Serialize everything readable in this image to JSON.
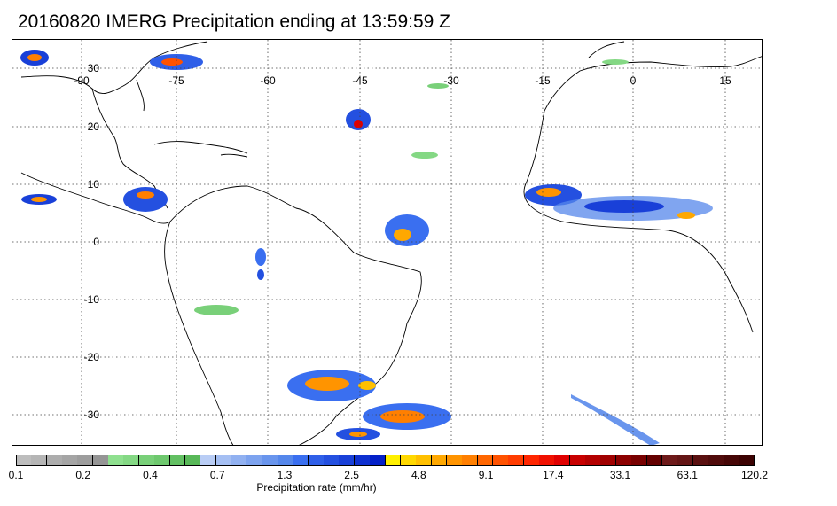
{
  "title": "20160820 IMERG Precipitation ending at 13:59:59 Z",
  "map": {
    "longitude_labels": [
      "-90",
      "-75",
      "-60",
      "-45",
      "-30",
      "-15",
      "0",
      "15"
    ],
    "latitude_labels": [
      "30",
      "20",
      "10",
      "0",
      "-10",
      "-20",
      "-30"
    ]
  },
  "colorbar": {
    "title": "Precipitation rate (mm/hr)",
    "tick_labels": [
      "0.1",
      "0.2",
      "0.4",
      "0.7",
      "1.3",
      "2.5",
      "4.8",
      "9.1",
      "17.4",
      "33.1",
      "63.1",
      "120.2"
    ],
    "colors": [
      "#bdbdbd",
      "#b5b5b5",
      "#adadad",
      "#a5a5a5",
      "#9d9d9d",
      "#959595",
      "#8fe08f",
      "#84d884",
      "#79d079",
      "#6ec86e",
      "#63c063",
      "#58b858",
      "#b9cdf5",
      "#a5bff3",
      "#91b1f1",
      "#7da3ef",
      "#6995ed",
      "#5587eb",
      "#3a6ff0",
      "#2f5fe8",
      "#2450e0",
      "#1940d8",
      "#0e30d0",
      "#0320c8",
      "#fff000",
      "#ffd800",
      "#ffc000",
      "#ffa800",
      "#ff9400",
      "#ff7f00",
      "#ff6600",
      "#ff5200",
      "#ff3c00",
      "#ff2600",
      "#f01000",
      "#e00000",
      "#c80000",
      "#b40000",
      "#a00000",
      "#8c0000",
      "#780000",
      "#640000",
      "#6e1a1a",
      "#641515",
      "#5a1010",
      "#500b0b",
      "#460606",
      "#3c0202"
    ]
  }
}
